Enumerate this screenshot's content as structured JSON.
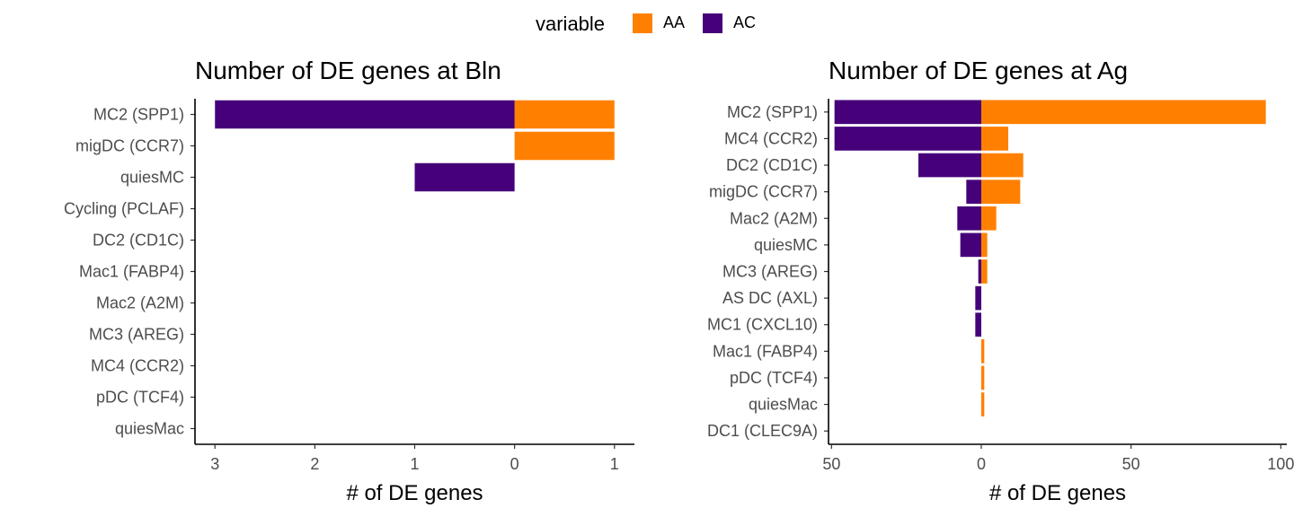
{
  "legend": {
    "title": "variable",
    "items": [
      {
        "label": "AA",
        "color": "#FF8000"
      },
      {
        "label": "AC",
        "color": "#45007A"
      }
    ]
  },
  "chart_data": [
    {
      "type": "bar",
      "orientation": "horizontal",
      "stacking": "diverging",
      "title": "Number of DE genes at Bln",
      "xlabel": "# of DE genes",
      "ylabel": "",
      "xlim": [
        -3.2,
        1.2
      ],
      "xticks": [
        -3,
        -2,
        -1,
        0,
        1
      ],
      "xtick_labels": [
        "3",
        "2",
        "1",
        "0",
        "1"
      ],
      "categories": [
        "MC2 (SPP1)",
        "migDC (CCR7)",
        "quiesMC",
        "Cycling (PCLAF)",
        "DC2 (CD1C)",
        "Mac1 (FABP4)",
        "Mac2 (A2M)",
        "MC3 (AREG)",
        "MC4 (CCR2)",
        "pDC (TCF4)",
        "quiesMac"
      ],
      "series": [
        {
          "name": "AA",
          "color": "#FF8000",
          "values": [
            1,
            1,
            0,
            0,
            0,
            0,
            0,
            0,
            0,
            0,
            0
          ]
        },
        {
          "name": "AC",
          "color": "#45007A",
          "values": [
            -3,
            0,
            -1,
            0,
            0,
            0,
            0,
            0,
            0,
            0,
            0
          ]
        }
      ],
      "grid": false
    },
    {
      "type": "bar",
      "orientation": "horizontal",
      "stacking": "diverging",
      "title": "Number of DE genes at Ag",
      "xlabel": "# of DE genes",
      "ylabel": "",
      "xlim": [
        -51,
        102
      ],
      "xticks": [
        -50,
        0,
        50,
        100
      ],
      "xtick_labels": [
        "50",
        "0",
        "50",
        "100"
      ],
      "categories": [
        "MC2 (SPP1)",
        "MC4 (CCR2)",
        "DC2 (CD1C)",
        "migDC (CCR7)",
        "Mac2 (A2M)",
        "quiesMC",
        "MC3 (AREG)",
        "AS DC (AXL)",
        "MC1 (CXCL10)",
        "Mac1 (FABP4)",
        "pDC (TCF4)",
        "quiesMac",
        "DC1 (CLEC9A)"
      ],
      "series": [
        {
          "name": "AA",
          "color": "#FF8000",
          "values": [
            95,
            9,
            14,
            13,
            5,
            2,
            2,
            0,
            0,
            1,
            1,
            1,
            0
          ]
        },
        {
          "name": "AC",
          "color": "#45007A",
          "values": [
            -49,
            -49,
            -21,
            -5,
            -8,
            -7,
            -1,
            -2,
            -2,
            0,
            0,
            0,
            0
          ]
        }
      ],
      "grid": false
    }
  ]
}
